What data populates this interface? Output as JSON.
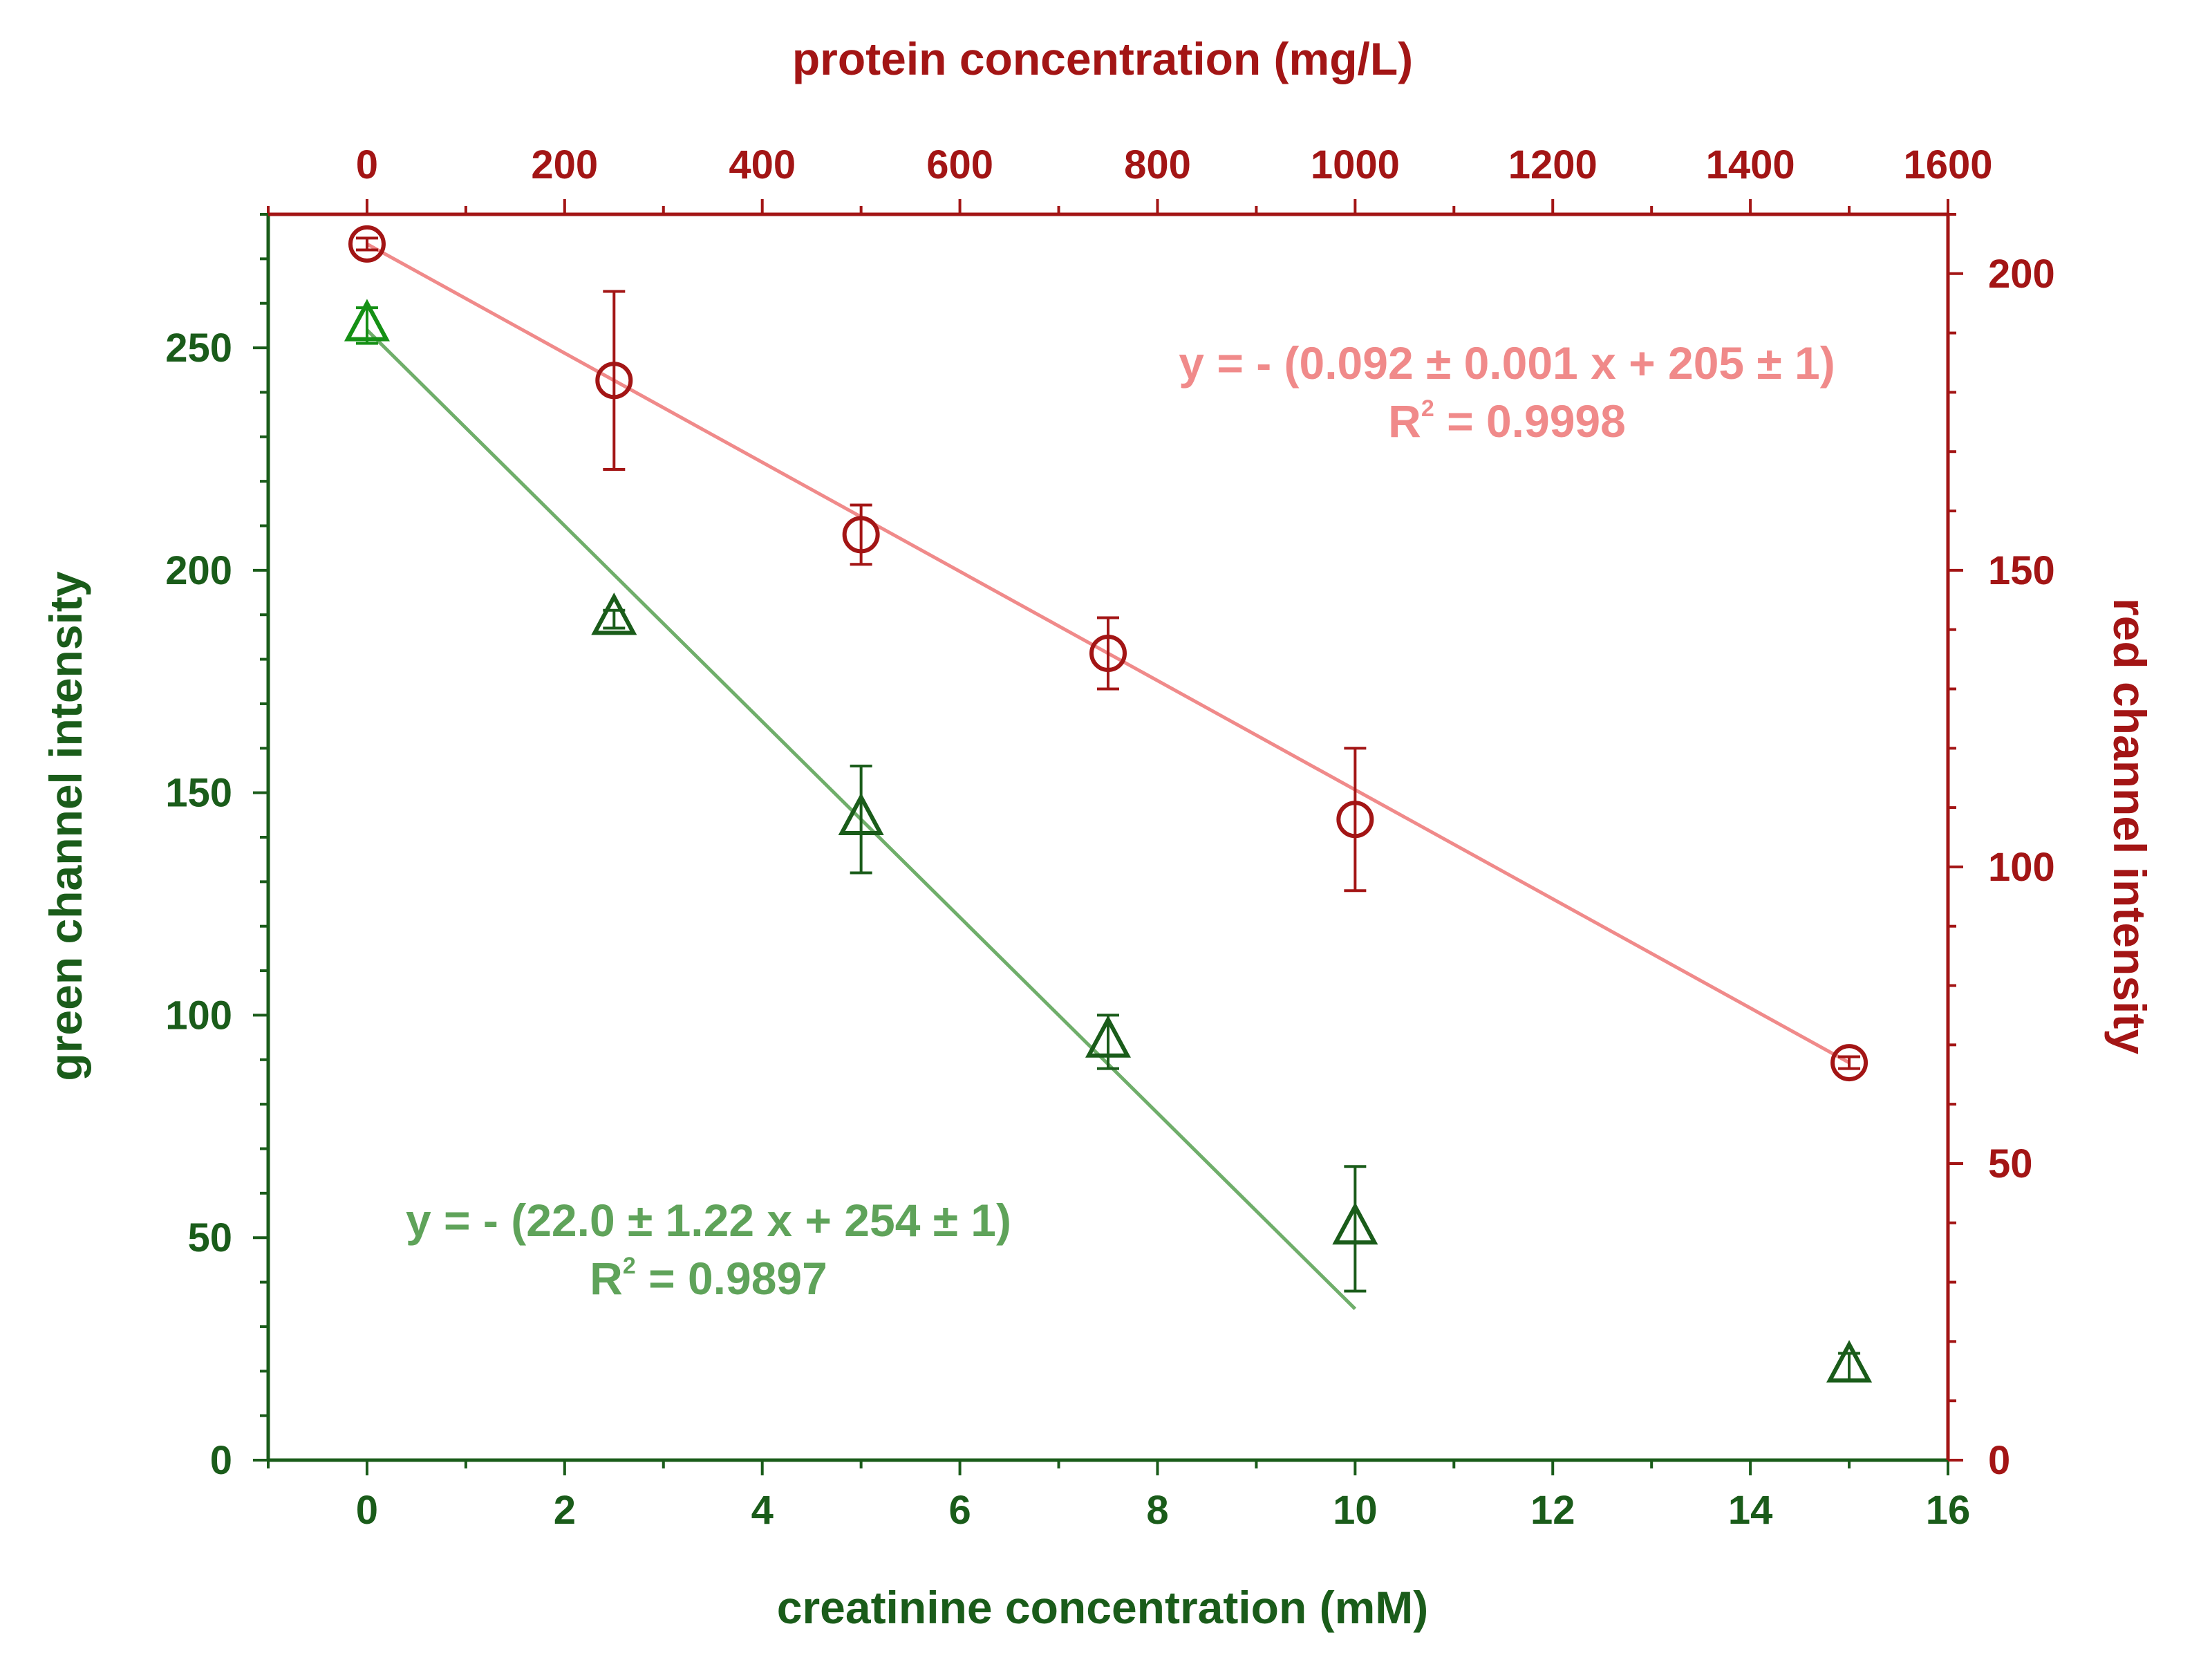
{
  "chart_data": {
    "type": "scatter",
    "colors": {
      "green_axis": "#1a5c1a",
      "green_marker_first": "#159015",
      "green_fit": "#6fae6a",
      "green_fit_text": "#5fa35a",
      "red_axis": "#a31515",
      "red_fit": "#f08a8a",
      "red_fit_text": "#f08a8a"
    },
    "xlabel": "creatinine concentration (mM)",
    "x2label": "protein concentration (mg/L)",
    "ylabel": "green channel intensity",
    "y2label": "red channel intensity",
    "xlim": [
      -1,
      16
    ],
    "x2lim": [
      -100,
      1600
    ],
    "ylim": [
      0,
      280
    ],
    "y2lim": [
      0,
      210
    ],
    "xticks": [
      "0",
      "2",
      "4",
      "6",
      "8",
      "10",
      "12",
      "14",
      "16"
    ],
    "x2ticks": [
      "0",
      "200",
      "400",
      "600",
      "800",
      "1000",
      "1200",
      "1400",
      "1600"
    ],
    "yticks": [
      "0",
      "50",
      "100",
      "150",
      "200",
      "250"
    ],
    "y2ticks": [
      "0",
      "50",
      "100",
      "150",
      "200"
    ],
    "series": [
      {
        "name": "green channel intensity",
        "axis": "left-bottom",
        "marker": "triangle",
        "x": [
          0,
          2.5,
          5,
          7.5,
          10,
          15
        ],
        "y": [
          255,
          189,
          144,
          94,
          52,
          21
        ],
        "err": [
          4,
          2,
          12,
          6,
          14,
          3
        ]
      },
      {
        "name": "red channel intensity",
        "axis": "right-top",
        "marker": "circle",
        "x": [
          0,
          250,
          500,
          750,
          1000,
          1500
        ],
        "y": [
          205,
          182,
          156,
          136,
          108,
          67
        ],
        "err": [
          1,
          15,
          5,
          6,
          12,
          1
        ]
      }
    ],
    "fits": [
      {
        "name": "green fit",
        "axis": "left-bottom",
        "slope": -22.0,
        "intercept": 254,
        "x_range": [
          0,
          10
        ],
        "equation": "y = - (22.0 ± 1.22 x + 254 ± 1)",
        "r2_prefix": "R",
        "r2_sup": "2",
        "r2_value": " = 0.9897"
      },
      {
        "name": "red fit",
        "axis": "right-top",
        "slope": -0.092,
        "intercept": 205,
        "x_range": [
          0,
          1500
        ],
        "equation": "y = - (0.092 ± 0.001 x + 205 ± 1)",
        "r2_prefix": "R",
        "r2_sup": "2",
        "r2_value": " = 0.9998"
      }
    ]
  }
}
